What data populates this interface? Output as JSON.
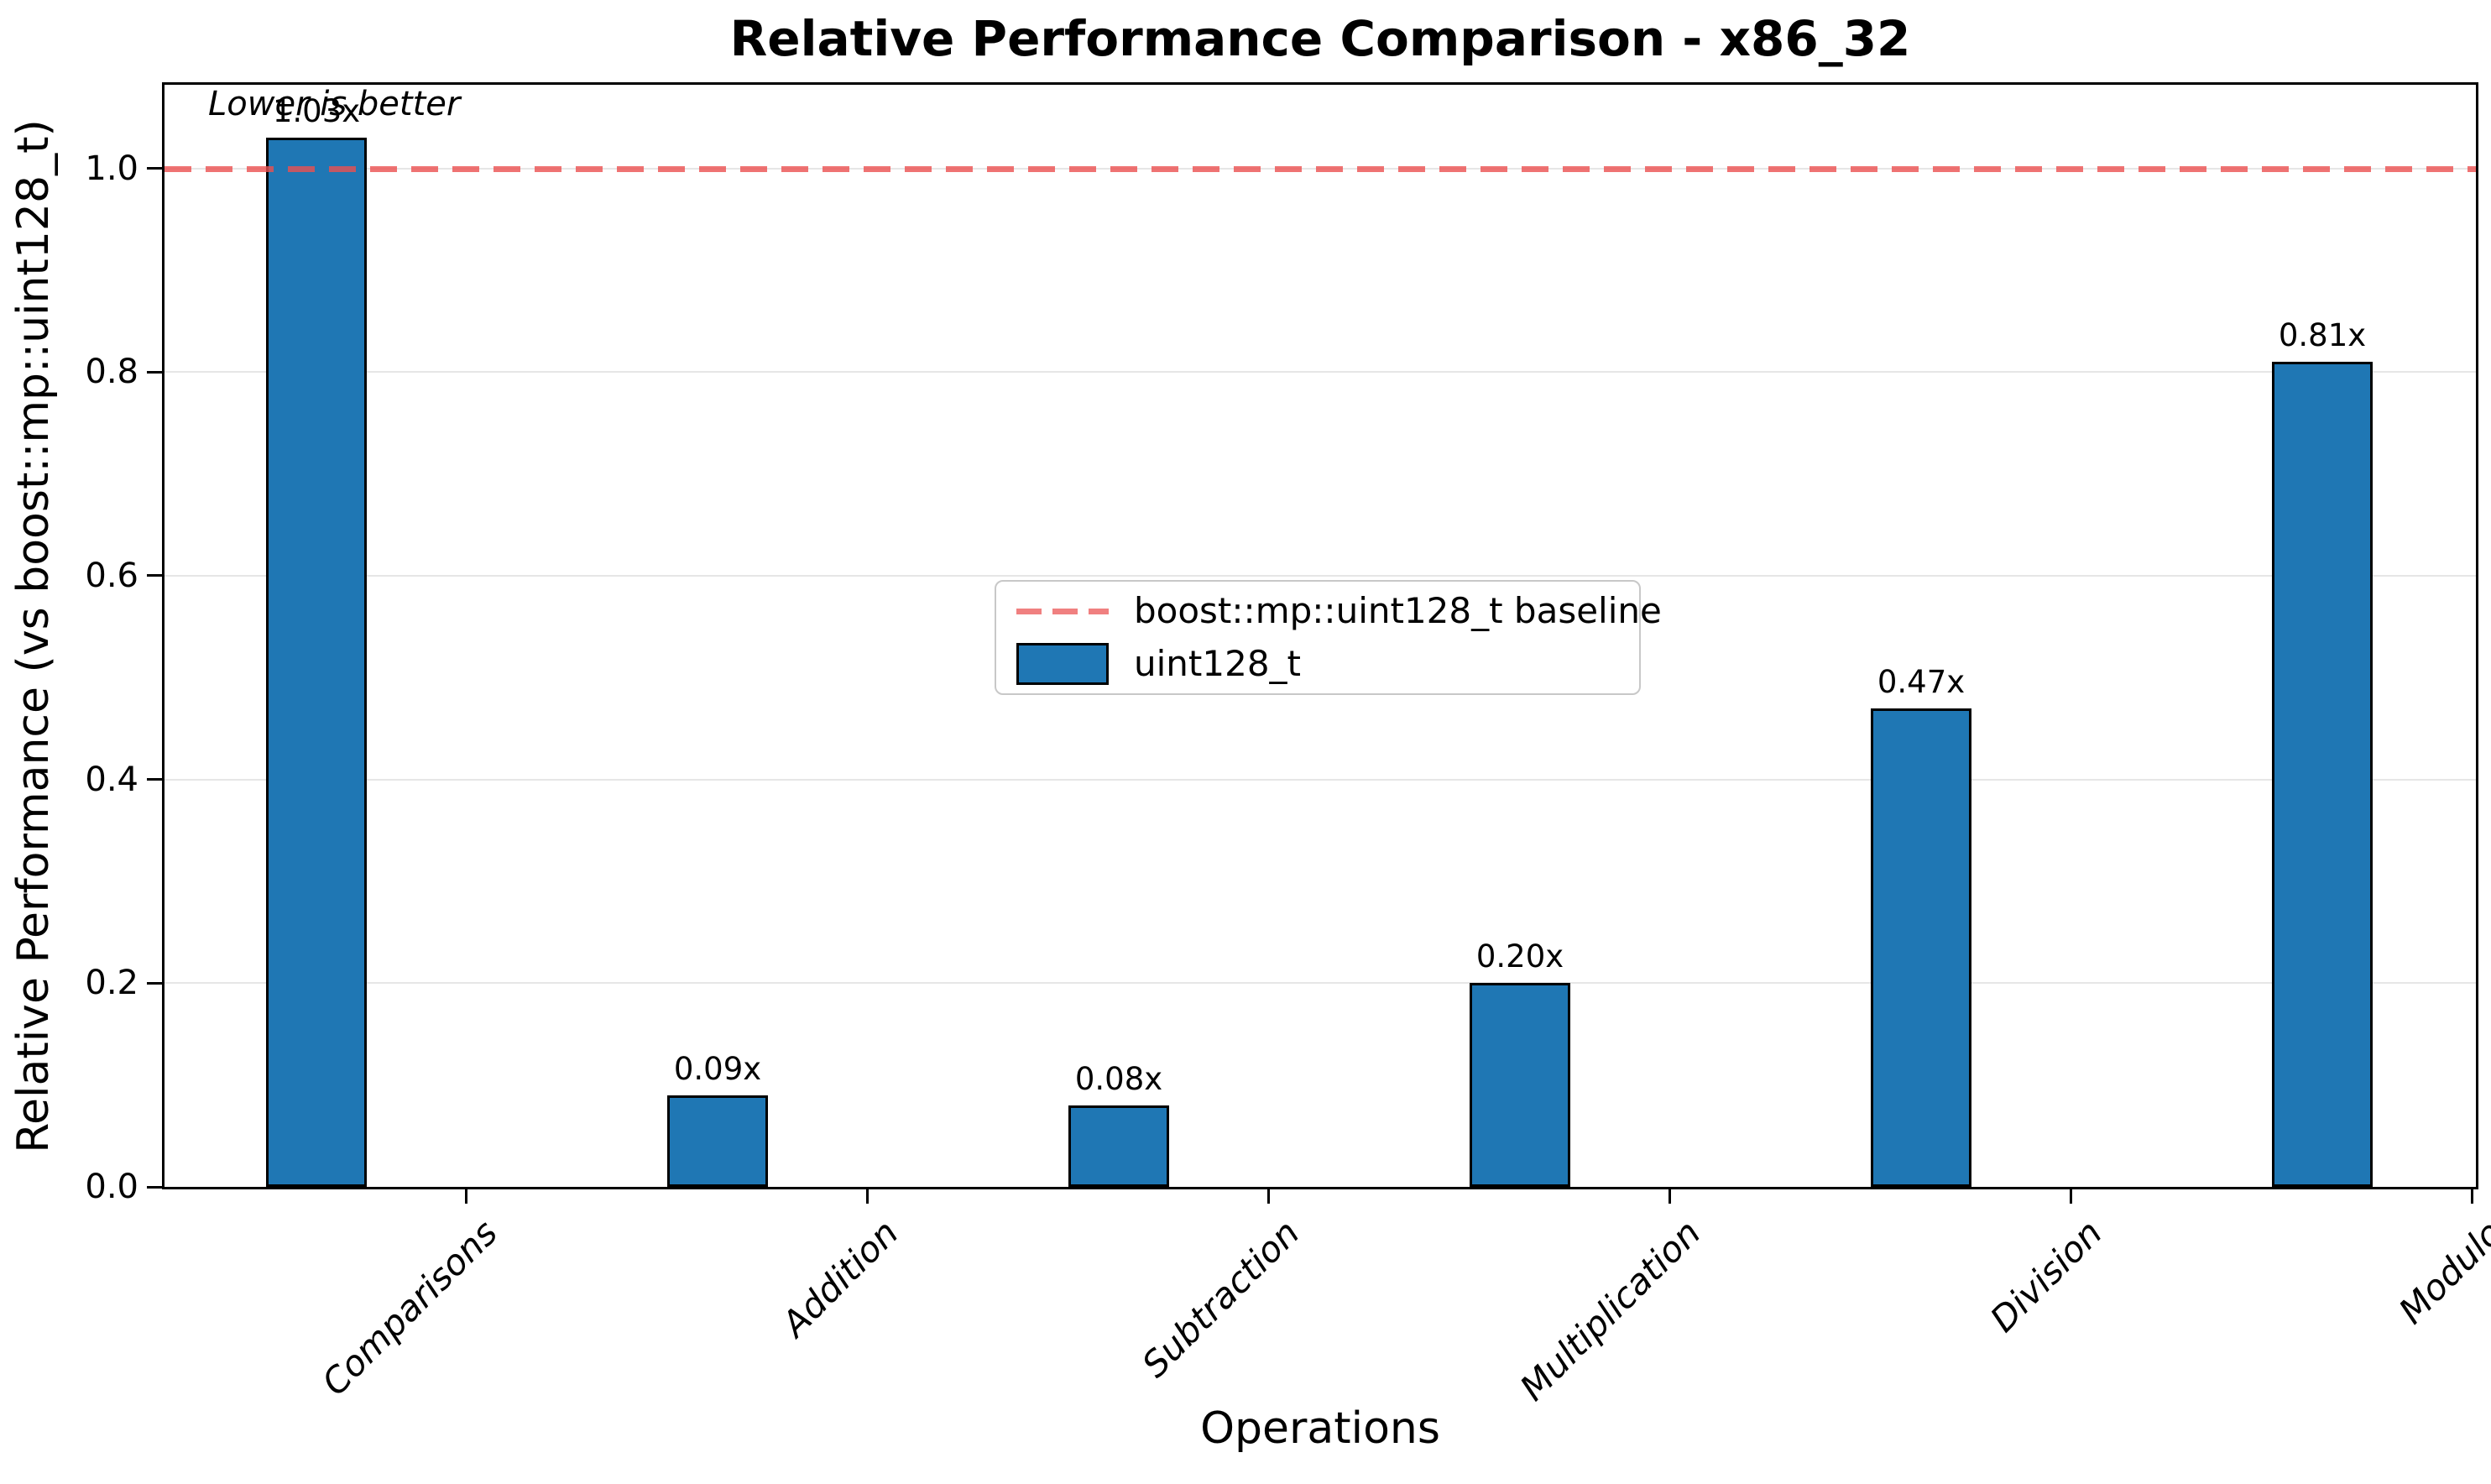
{
  "chart_data": {
    "type": "bar",
    "title": "Relative Performance Comparison - x86_32",
    "xlabel": "Operations",
    "ylabel": "Relative Performance (vs boost::mp::uint128_t)",
    "categories": [
      "Comparisons",
      "Addition",
      "Subtraction",
      "Multiplication",
      "Division",
      "Modulo"
    ],
    "series": [
      {
        "name": "uint128_t",
        "values": [
          1.03,
          0.09,
          0.08,
          0.2,
          0.47,
          0.81
        ],
        "color": "#1f77b4",
        "edge_color": "#000000"
      }
    ],
    "bar_value_labels": [
      "1.03x",
      "0.09x",
      "0.08x",
      "0.20x",
      "0.47x",
      "0.81x"
    ],
    "baseline": {
      "value": 1.0,
      "label": "boost::mp::uint128_t baseline",
      "color": "#ee5555",
      "linestyle": "dashed"
    },
    "annotation": "Lower is better",
    "ytick_values": [
      0.0,
      0.2,
      0.4,
      0.6,
      0.8,
      1.0
    ],
    "ytick_labels": [
      "0.0",
      "0.2",
      "0.4",
      "0.6",
      "0.8",
      "1.0"
    ],
    "ylim": [
      0,
      1.082
    ],
    "grid": "y",
    "grid_color": "#e6e6e6",
    "legend_position": "center",
    "background": "#ffffff"
  }
}
